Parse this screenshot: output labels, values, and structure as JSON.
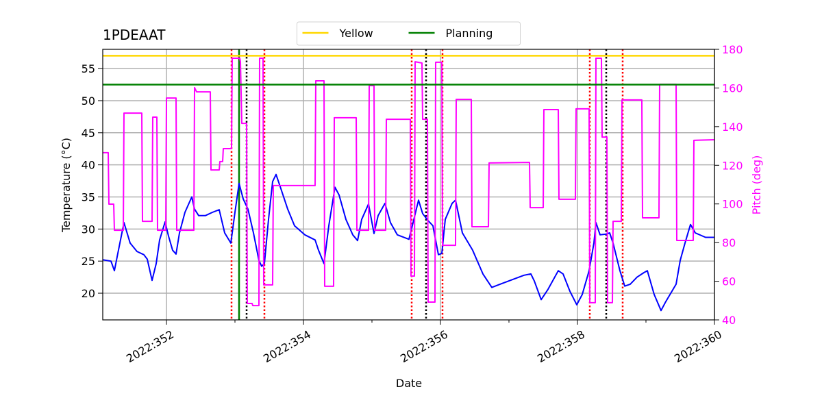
{
  "chart_data": {
    "type": "line",
    "title": "1PDEAAT",
    "xlabel": "Date",
    "ylabel": "Temperature (°C)",
    "y2label": "Pitch (deg)",
    "y2color": "#ff00ff",
    "grid": true,
    "legend": {
      "loc": "upper center",
      "ncol": 2
    },
    "xlim": [
      351.07,
      360.0
    ],
    "xticks": [
      {
        "value": 352,
        "label": "2022:352"
      },
      {
        "value": 354,
        "label": "2022:354"
      },
      {
        "value": 356,
        "label": "2022:356"
      },
      {
        "value": 358,
        "label": "2022:358"
      },
      {
        "value": 360,
        "label": "2022:360"
      }
    ],
    "xminorticks": [
      353,
      355,
      357,
      359
    ],
    "ylim": [
      15.84,
      58
    ],
    "yticks": [
      20,
      25,
      30,
      35,
      40,
      45,
      50,
      55
    ],
    "y2lim": [
      40,
      180
    ],
    "y2ticks": [
      40,
      60,
      80,
      100,
      120,
      140,
      160,
      180
    ],
    "hlines": [
      {
        "name": "Yellow",
        "y": 57,
        "color": "#ffd700"
      },
      {
        "name": "Planning",
        "y": 52.5,
        "color": "#008000"
      }
    ],
    "vlines": [
      {
        "x": 352.95,
        "color": "#ff0000",
        "style": "dotted"
      },
      {
        "x": 353.43,
        "color": "#ff0000",
        "style": "dotted"
      },
      {
        "x": 355.58,
        "color": "#ff0000",
        "style": "dotted"
      },
      {
        "x": 356.03,
        "color": "#ff0000",
        "style": "dotted"
      },
      {
        "x": 358.18,
        "color": "#ff0000",
        "style": "dotted"
      },
      {
        "x": 358.66,
        "color": "#ff0000",
        "style": "dotted"
      },
      {
        "x": 353.17,
        "color": "#000000",
        "style": "dotted"
      },
      {
        "x": 355.79,
        "color": "#000000",
        "style": "dotted"
      },
      {
        "x": 358.42,
        "color": "#000000",
        "style": "dotted"
      },
      {
        "x": 353.06,
        "color": "#008000",
        "style": "solid"
      }
    ],
    "series": [
      {
        "color": "#0000ff",
        "x": [
          351.07,
          351.19,
          351.24,
          351.29,
          351.38,
          351.47,
          351.57,
          351.67,
          351.72,
          351.79,
          351.85,
          351.9,
          351.98,
          352.03,
          352.09,
          352.14,
          352.19,
          352.27,
          352.37,
          352.41,
          352.47,
          352.57,
          352.67,
          352.77,
          352.85,
          352.94,
          353.0,
          353.06,
          353.12,
          353.19,
          353.27,
          353.35,
          353.39,
          353.43,
          353.49,
          353.55,
          353.6,
          353.67,
          353.77,
          353.87,
          354.02,
          354.17,
          354.22,
          354.3,
          354.37,
          354.46,
          354.52,
          354.62,
          354.72,
          354.79,
          354.85,
          354.95,
          355.03,
          355.09,
          355.19,
          355.27,
          355.37,
          355.54,
          355.6,
          355.68,
          355.74,
          355.82,
          355.89,
          355.97,
          356.02,
          356.07,
          356.17,
          356.22,
          356.32,
          356.47,
          356.62,
          356.75,
          356.87,
          357.02,
          357.22,
          357.32,
          357.37,
          357.47,
          357.57,
          357.72,
          357.79,
          357.89,
          357.99,
          358.07,
          358.17,
          358.24,
          358.27,
          358.33,
          358.42,
          358.47,
          358.52,
          358.62,
          358.69,
          358.77,
          358.87,
          358.97,
          359.02,
          359.12,
          359.22,
          359.29,
          359.44,
          359.5,
          359.57,
          359.65,
          359.72,
          359.87,
          360.0
        ],
        "values": [
          25.2,
          25.0,
          23.5,
          26.2,
          31.0,
          27.8,
          26.5,
          26.0,
          25.3,
          22.0,
          24.6,
          28.3,
          31.1,
          28.9,
          26.7,
          26.1,
          29.4,
          32.6,
          35.0,
          33.1,
          32.1,
          32.1,
          32.6,
          33.0,
          29.4,
          27.8,
          32.6,
          37.1,
          34.7,
          33.1,
          29.4,
          25.1,
          24.2,
          24.6,
          31.5,
          37.4,
          38.5,
          36.3,
          33.1,
          30.5,
          29.1,
          28.3,
          26.7,
          24.6,
          30.5,
          36.5,
          35.3,
          31.5,
          29.1,
          28.2,
          31.5,
          33.9,
          29.3,
          32.1,
          34.0,
          31.0,
          29.1,
          28.4,
          31.0,
          34.5,
          32.4,
          31.3,
          30.5,
          26.0,
          26.2,
          31.5,
          34.0,
          34.5,
          29.4,
          26.7,
          23.0,
          20.9,
          21.4,
          22.0,
          22.8,
          23.0,
          21.9,
          19.0,
          20.6,
          23.5,
          23.0,
          20.3,
          18.2,
          19.8,
          23.5,
          27.8,
          31.0,
          29.1,
          29.2,
          29.4,
          27.8,
          23.5,
          21.1,
          21.4,
          22.5,
          23.2,
          23.5,
          19.8,
          17.3,
          18.7,
          21.4,
          25.1,
          27.8,
          30.7,
          29.4,
          28.7,
          28.7
        ]
      },
      {
        "color": "#ff00ff",
        "axis": "y2",
        "x": [
          351.07,
          351.15,
          351.16,
          351.23,
          351.24,
          351.37,
          351.38,
          351.64,
          351.65,
          351.79,
          351.8,
          351.86,
          351.87,
          351.99,
          352.0,
          352.14,
          352.15,
          352.4,
          352.41,
          352.44,
          352.64,
          352.65,
          352.77,
          352.78,
          352.82,
          352.83,
          352.95,
          352.96,
          353.07,
          353.08,
          353.1,
          353.17,
          353.18,
          353.25,
          353.26,
          353.35,
          353.36,
          353.41,
          353.42,
          353.55,
          353.56,
          354.17,
          354.18,
          354.3,
          354.31,
          354.44,
          354.45,
          354.77,
          354.78,
          354.95,
          354.96,
          355.03,
          355.04,
          355.2,
          355.21,
          355.56,
          355.57,
          355.62,
          355.63,
          355.73,
          355.74,
          355.81,
          355.82,
          355.92,
          355.93,
          356.02,
          356.03,
          356.22,
          356.23,
          356.45,
          356.46,
          356.7,
          356.71,
          357.3,
          357.31,
          357.5,
          357.51,
          357.72,
          357.73,
          357.97,
          357.98,
          358.17,
          358.18,
          358.26,
          358.27,
          358.35,
          358.36,
          358.43,
          358.44,
          358.51,
          358.52,
          358.64,
          358.65,
          358.94,
          358.95,
          359.19,
          359.2,
          359.44,
          359.45,
          359.69,
          359.7,
          360.0
        ],
        "values": [
          126.5,
          126.5,
          99.9,
          99.9,
          86.4,
          86.4,
          147.0,
          147.0,
          91.0,
          91.0,
          144.9,
          144.9,
          86.4,
          86.4,
          154.8,
          154.8,
          86.4,
          86.4,
          160.2,
          158.0,
          158.0,
          117.6,
          117.6,
          121.9,
          121.9,
          128.6,
          128.6,
          175.4,
          175.4,
          173.6,
          141.7,
          141.7,
          48.5,
          48.5,
          47.4,
          47.4,
          175.4,
          175.4,
          58.1,
          58.1,
          109.5,
          109.5,
          163.7,
          163.7,
          57.4,
          57.4,
          144.6,
          144.6,
          86.4,
          86.4,
          161.2,
          161.2,
          86.4,
          86.4,
          143.8,
          143.8,
          62.7,
          62.7,
          173.6,
          172.9,
          143.8,
          143.8,
          49.2,
          49.2,
          173.3,
          173.3,
          78.6,
          78.6,
          154.1,
          154.1,
          88.2,
          88.2,
          121.2,
          121.5,
          98.1,
          98.1,
          148.8,
          148.8,
          102.4,
          102.4,
          149.2,
          149.2,
          48.9,
          48.9,
          175.4,
          175.4,
          134.6,
          134.6,
          48.9,
          48.9,
          91.0,
          91.0,
          153.8,
          153.8,
          92.8,
          92.8,
          161.9,
          161.9,
          81.1,
          81.1,
          132.9,
          133.2
        ]
      }
    ]
  }
}
